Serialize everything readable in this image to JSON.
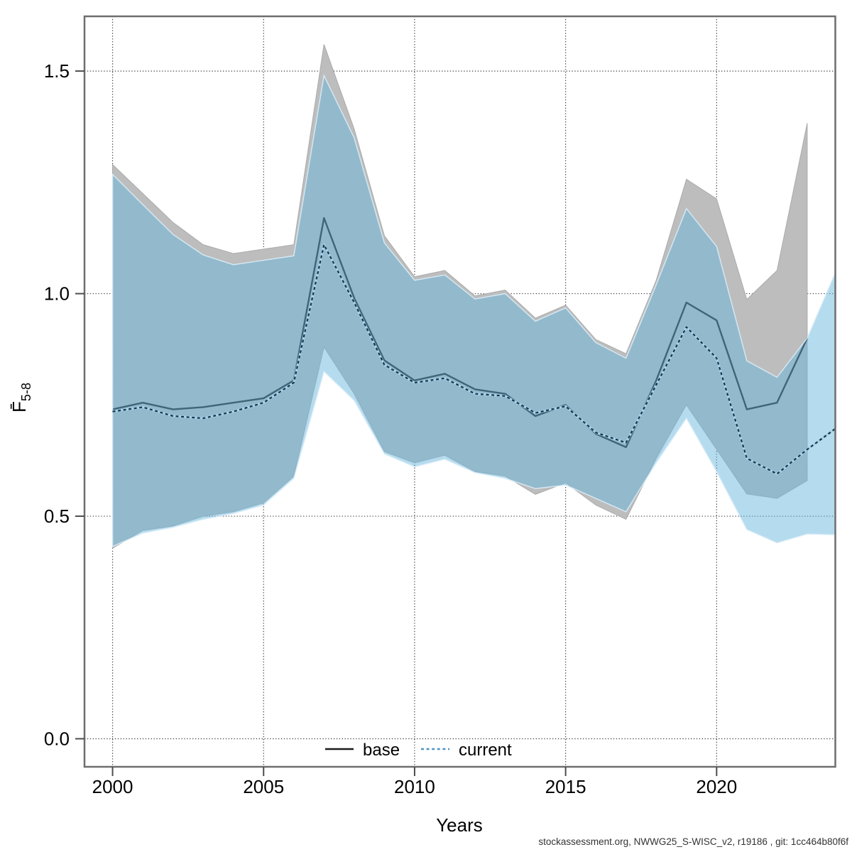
{
  "chart_data": {
    "type": "line",
    "title": "",
    "xlabel": "Years",
    "ylabel_main": "F̄",
    "ylabel_sub": "5-8",
    "grid": true,
    "legend_position": "bottom-center-inside",
    "xlim": [
      1999.07,
      2023.93
    ],
    "ylim": [
      -0.063,
      1.623
    ],
    "x_ticks": [
      2000,
      2005,
      2010,
      2015,
      2020
    ],
    "y_ticks": [
      0,
      0.5,
      1,
      1.5
    ],
    "y_tick_labels": [
      "0.0",
      "0.5",
      "1.0",
      "1.5"
    ],
    "colors": {
      "base_band": "#bdbdbd",
      "base_band_edge": "#ababab",
      "base_line": "#1a1a1a",
      "current_band": "rgba(102,181,220,0.485)",
      "current_band_edge": "rgba(216,236,247,0.9)",
      "current_line_dash": "#16374a",
      "current_line_halo": "#a5d2ea",
      "legend_current": "#4e93c4",
      "grid": "#3c3c3c",
      "border": "#6e6e6e",
      "tick": "#4d4d4d"
    },
    "series": [
      {
        "name": "base",
        "style": "solid",
        "years": [
          2000,
          2001,
          2002,
          2003,
          2004,
          2005,
          2006,
          2007,
          2008,
          2009,
          2010,
          2011,
          2012,
          2013,
          2014,
          2015,
          2016,
          2017,
          2018,
          2019,
          2020,
          2021,
          2022,
          2023
        ],
        "values": [
          0.74,
          0.755,
          0.74,
          0.745,
          0.755,
          0.765,
          0.805,
          1.17,
          0.99,
          0.85,
          0.805,
          0.82,
          0.785,
          0.775,
          0.725,
          0.75,
          0.685,
          0.655,
          0.805,
          0.98,
          0.94,
          0.74,
          0.755,
          0.9
        ],
        "band_upper": [
          1.29,
          1.225,
          1.16,
          1.11,
          1.09,
          1.1,
          1.11,
          1.56,
          1.37,
          1.13,
          1.038,
          1.052,
          0.995,
          1.008,
          0.945,
          0.974,
          0.897,
          0.865,
          1.03,
          1.257,
          1.213,
          0.987,
          1.052,
          1.383
        ],
        "band_lower": [
          0.428,
          0.468,
          0.478,
          0.5,
          0.51,
          0.53,
          0.59,
          0.88,
          0.775,
          0.645,
          0.62,
          0.637,
          0.6,
          0.59,
          0.549,
          0.575,
          0.525,
          0.493,
          0.63,
          0.75,
          0.65,
          0.55,
          0.54,
          0.58
        ]
      },
      {
        "name": "current",
        "style": "dotted",
        "years": [
          2000,
          2001,
          2002,
          2003,
          2004,
          2005,
          2006,
          2007,
          2008,
          2009,
          2010,
          2011,
          2012,
          2013,
          2014,
          2015,
          2016,
          2017,
          2018,
          2019,
          2020,
          2021,
          2022,
          2023,
          2024
        ],
        "values": [
          0.735,
          0.745,
          0.725,
          0.72,
          0.735,
          0.755,
          0.8,
          1.11,
          0.98,
          0.84,
          0.8,
          0.81,
          0.775,
          0.77,
          0.732,
          0.747,
          0.688,
          0.665,
          0.795,
          0.925,
          0.855,
          0.63,
          0.595,
          0.65,
          0.7
        ],
        "band_upper": [
          1.268,
          1.2,
          1.133,
          1.087,
          1.065,
          1.075,
          1.085,
          1.49,
          1.35,
          1.114,
          1.03,
          1.042,
          0.988,
          1.0,
          0.938,
          0.968,
          0.89,
          0.855,
          1.02,
          1.191,
          1.106,
          0.849,
          0.812,
          0.9,
          1.058
        ],
        "band_lower": [
          0.432,
          0.462,
          0.475,
          0.493,
          0.506,
          0.525,
          0.585,
          0.825,
          0.76,
          0.64,
          0.611,
          0.628,
          0.598,
          0.585,
          0.562,
          0.57,
          0.54,
          0.51,
          0.62,
          0.72,
          0.6,
          0.47,
          0.44,
          0.46,
          0.458
        ]
      }
    ],
    "legend": [
      "base",
      "current"
    ],
    "footer": "stockassessment.org, NWWG25_S-WISC_v2, r19186 , git: 1cc464b80f6f"
  }
}
